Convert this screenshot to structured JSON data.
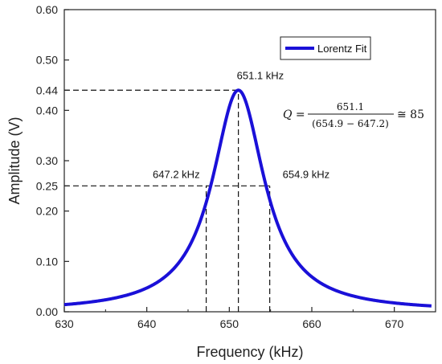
{
  "chart_data": {
    "type": "line",
    "xlabel": "Frequency  (kHz)",
    "ylabel": "Amplitude (V)",
    "xlim": [
      630,
      675
    ],
    "ylim": [
      0,
      0.6
    ],
    "x_ticks": [
      630,
      640,
      650,
      660,
      670
    ],
    "y_ticks": [
      0.0,
      0.1,
      0.2,
      0.25,
      0.3,
      0.4,
      0.44,
      0.5,
      0.6
    ],
    "y_tick_labels": [
      "0.00",
      "0.10",
      "0.20",
      "0.25",
      "0.30",
      "0.40",
      "0.44",
      "0.50",
      "0.60"
    ],
    "grid": false,
    "legend_position": "top-right",
    "series": [
      {
        "name": "Lorentz Fit",
        "color": "#1a10d8",
        "lorentz": {
          "center": 651.1,
          "fwhm": 7.7,
          "peak": 0.44,
          "baseline": 0.0
        },
        "x_range": [
          630,
          674.5
        ]
      }
    ],
    "annotations": [
      {
        "text": "651.1 kHz",
        "x": 651.1,
        "y": 0.44
      },
      {
        "text": "647.2 kHz",
        "x": 647.2,
        "y": 0.25
      },
      {
        "text": "654.9 kHz",
        "x": 654.9,
        "y": 0.25
      }
    ],
    "reference_lines": [
      {
        "type": "horizontal",
        "y": 0.44,
        "x_from": 630,
        "x_to": 651.1
      },
      {
        "type": "horizontal",
        "y": 0.25,
        "x_from": 630,
        "x_to": 654.9
      },
      {
        "type": "vertical",
        "x": 647.2,
        "y_from": 0,
        "y_to": 0.25
      },
      {
        "type": "vertical",
        "x": 651.1,
        "y_from": 0,
        "y_to": 0.44
      },
      {
        "type": "vertical",
        "x": 654.9,
        "y_from": 0,
        "y_to": 0.25
      }
    ],
    "formula": {
      "lhs": "Q =",
      "numerator": "651.1",
      "denominator": "(654.9 − 647.2)",
      "rhs": "≅ 85"
    }
  }
}
